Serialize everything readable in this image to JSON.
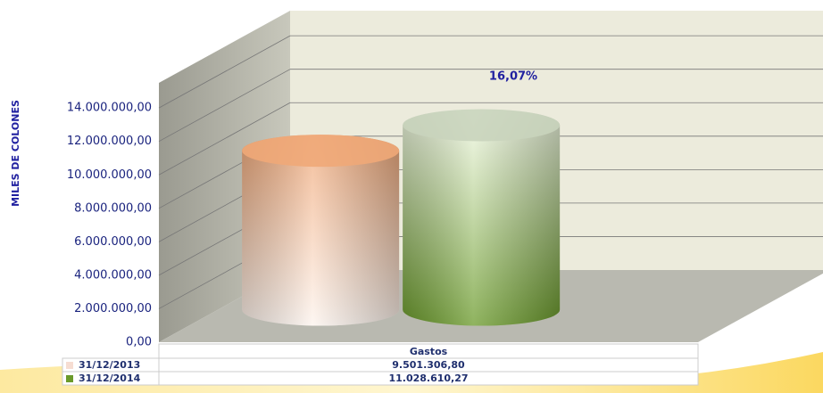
{
  "chart_data": {
    "type": "bar3d",
    "y_axis_label": "MILES  DE  COLONES",
    "annotation": "16,07%",
    "categories": [
      "Gastos"
    ],
    "series": [
      {
        "name": "31/12/2013",
        "color": "#f0a878",
        "values": [
          9501306.8
        ],
        "value_labels": [
          "9.501.306,80"
        ]
      },
      {
        "name": "31/12/2014",
        "color": "#6a9a2a",
        "values": [
          11028610.27
        ],
        "value_labels": [
          "11.028.610,27"
        ]
      }
    ],
    "ylim": [
      0,
      15500000
    ],
    "yticks": [
      {
        "value": 0,
        "label": "0,00"
      },
      {
        "value": 2000000,
        "label": "2.000.000,00"
      },
      {
        "value": 4000000,
        "label": "4.000.000,00"
      },
      {
        "value": 6000000,
        "label": "6.000.000,00"
      },
      {
        "value": 8000000,
        "label": "8.000.000,00"
      },
      {
        "value": 10000000,
        "label": "10.000.000,00"
      },
      {
        "value": 12000000,
        "label": "12.000.000,00"
      },
      {
        "value": 14000000,
        "label": "14.000.000,00"
      }
    ],
    "grid": true
  }
}
